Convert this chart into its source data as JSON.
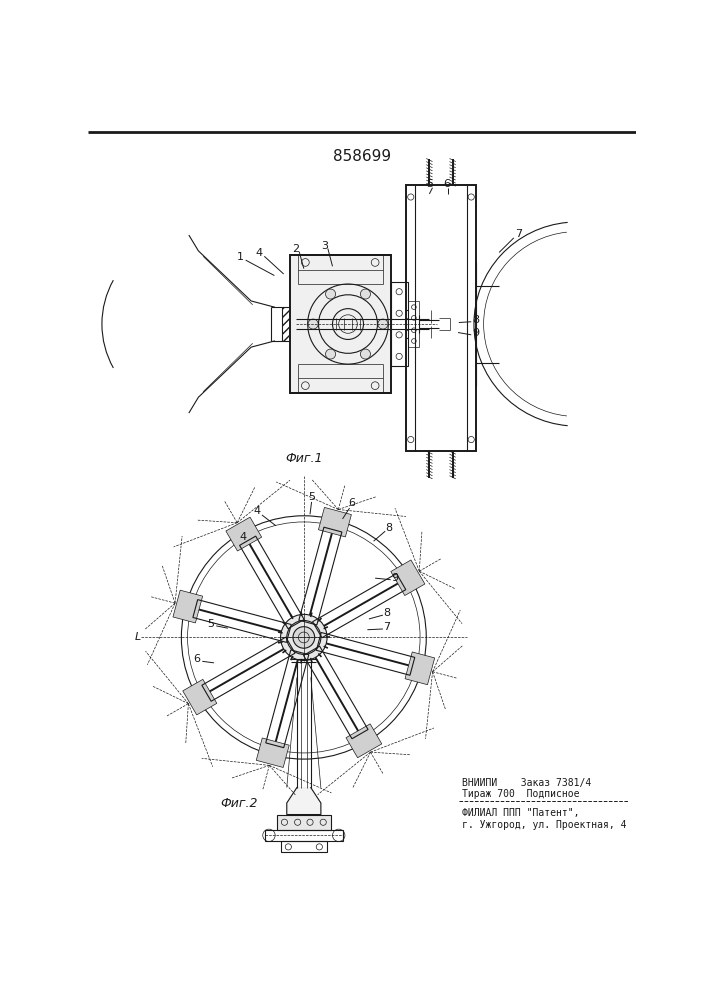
{
  "title": "858699",
  "fig1_caption": "Фиг.1",
  "fig2_caption": "Фиг.2",
  "bottom_text_line1": "ВНИИПИ    Заказ 7381/4",
  "bottom_text_line2": "Тираж 700  Подписное",
  "bottom_text_line3": "ФИЛИАЛ ППП \"Патент\",",
  "bottom_text_line4": "г. Ужгород, ул. Проектная, 4",
  "bg_color": "#ffffff",
  "line_color": "#1a1a1a",
  "fig_width": 7.07,
  "fig_height": 10.0,
  "dpi": 100
}
